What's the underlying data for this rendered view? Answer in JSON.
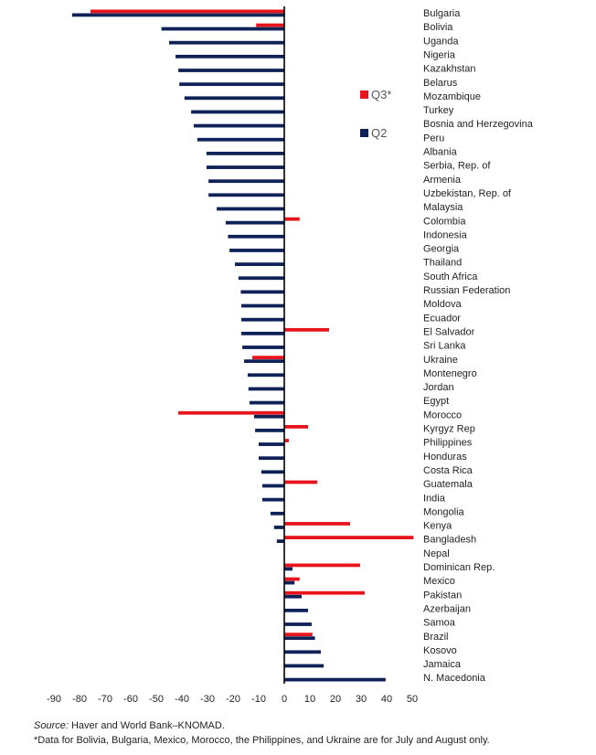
{
  "chart_data": {
    "type": "bar",
    "orientation": "horizontal",
    "categories": [
      "Bulgaria",
      "Bolivia",
      "Uganda",
      "Nigeria",
      "Kazakhstan",
      "Belarus",
      "Mozambique",
      "Turkey",
      "Bosnia and Herzegovina",
      "Peru",
      "Albania",
      "Serbia, Rep. of",
      "Armenia",
      "Uzbekistan, Rep. of",
      "Malaysia",
      "Colombia",
      "Indonesia",
      "Georgia",
      "Thailand",
      "South Africa",
      "Russian Federation",
      "Moldova",
      "Ecuador",
      "El Salvador",
      "Sri Lanka",
      "Ukraine",
      "Montenegro",
      "Jordan",
      "Egypt",
      "Morocco",
      "Kyrgyz Rep",
      "Philippines",
      "Honduras",
      "Costa Rica",
      "Guatemala",
      "India",
      "Mongolia",
      "Kenya",
      "Bangladesh",
      "Nepal",
      "Dominican Rep.",
      "Mexico",
      "Pakistan",
      "Azerbaijan",
      "Samoa",
      "Brazil",
      "Kosovo",
      "Jamaica",
      "N. Macedonia"
    ],
    "series": [
      {
        "name": "Q3*",
        "color": "#e8141b",
        "values": [
          -75.7,
          -11,
          null,
          null,
          null,
          null,
          null,
          null,
          null,
          null,
          null,
          null,
          null,
          null,
          null,
          6,
          null,
          null,
          null,
          null,
          null,
          null,
          null,
          17.5,
          null,
          -12.5,
          null,
          null,
          null,
          -41.4,
          9.3,
          1.8,
          null,
          null,
          12.9,
          null,
          null,
          25.7,
          50.5,
          null,
          29.6,
          6,
          31.4,
          null,
          null,
          11,
          null,
          null,
          null
        ]
      },
      {
        "name": "Q2",
        "color": "#0f2258",
        "values": [
          -82.9,
          -48,
          -45,
          -42.5,
          -41.4,
          -41,
          -39,
          -36.4,
          -35.4,
          -34,
          -30.4,
          -30.4,
          -29.6,
          -29.6,
          -26.4,
          -22.9,
          -22,
          -21.4,
          -19.3,
          -17.9,
          -17,
          -16.8,
          -16.8,
          -16.8,
          -16.4,
          -15.7,
          -14.3,
          -14,
          -13.6,
          -11.8,
          -11.4,
          -10,
          -10,
          -9,
          -8.6,
          -8.6,
          -5.4,
          -4,
          -2.9,
          0,
          3.2,
          4,
          6.8,
          9.3,
          10.7,
          12,
          14.3,
          15.4,
          39.6
        ]
      }
    ],
    "xlim": [
      -90,
      50
    ],
    "xticks": [
      -90,
      -80,
      -70,
      -60,
      -50,
      -40,
      -30,
      -20,
      -10,
      0,
      10,
      20,
      30,
      40,
      50
    ],
    "legend_placement": "upper-middle",
    "grid": false
  },
  "source_label": "Source:",
  "source_text": " Haver and World Bank–KNOMAD.",
  "footnote": "*Data for Bolivia, Bulgaria, Mexico, Morocco, the Philippines, and Ukraine are for July and August only."
}
